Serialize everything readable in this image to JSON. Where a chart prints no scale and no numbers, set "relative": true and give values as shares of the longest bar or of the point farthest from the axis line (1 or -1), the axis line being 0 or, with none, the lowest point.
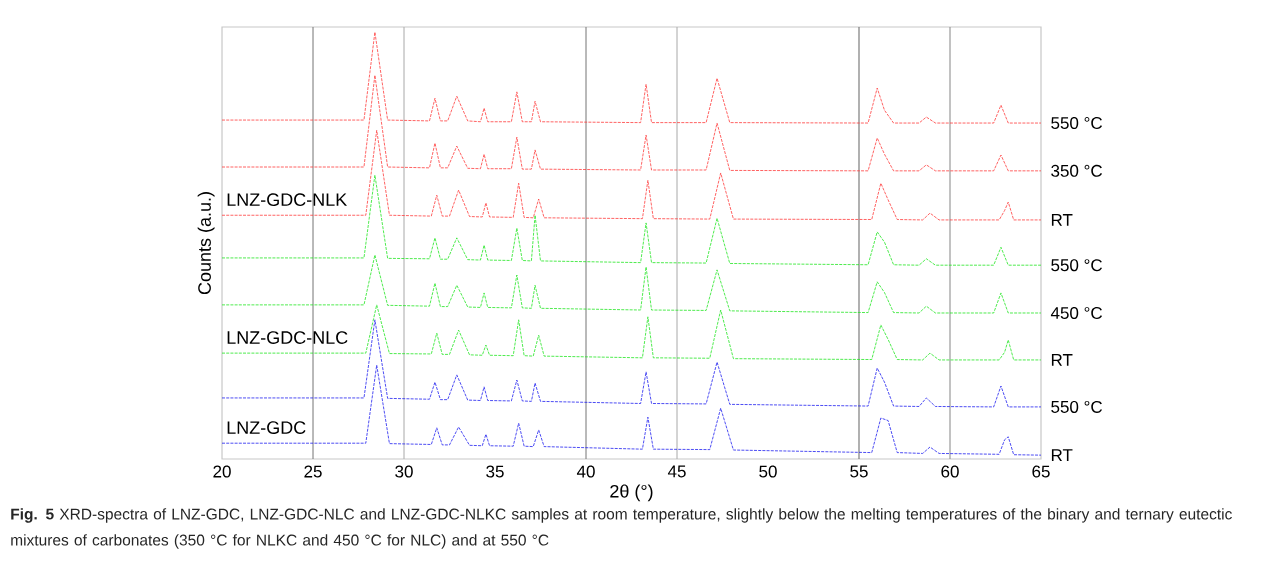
{
  "chart_data": {
    "type": "line",
    "relative": true,
    "xlabel": "2θ (°)",
    "ylabel": "Counts (a.u.)",
    "xlim": [
      20,
      65
    ],
    "xticks": [
      20,
      25,
      30,
      35,
      40,
      45,
      50,
      55,
      60,
      65
    ],
    "line_style": "dashed",
    "ref_lines": [
      {
        "axis": "x",
        "value": 25,
        "color": "#808080"
      },
      {
        "axis": "x",
        "value": 30,
        "color": "#b0b0b0"
      },
      {
        "axis": "x",
        "value": 40,
        "color": "#808080"
      },
      {
        "axis": "x",
        "value": 45,
        "color": "#b0b0b0"
      },
      {
        "axis": "x",
        "value": 55,
        "color": "#707070"
      },
      {
        "axis": "x",
        "value": 60,
        "color": "#909090"
      }
    ],
    "series": [
      {
        "name": "550 °C",
        "color": "#ff3b3b",
        "x": [
          20,
          27.8,
          28.4,
          29.1,
          31.4,
          31.7,
          32.0,
          32.4,
          32.9,
          33.5,
          34.2,
          34.4,
          34.6,
          35.9,
          36.2,
          36.5,
          37.0,
          37.2,
          37.5,
          43.0,
          43.3,
          43.6,
          46.6,
          47.2,
          47.9,
          55.5,
          56.0,
          56.4,
          56.9,
          58.3,
          58.7,
          59.2,
          62.4,
          62.8,
          63.2,
          65
        ],
        "values": [
          0.794,
          0.794,
          1.0,
          0.794,
          0.792,
          0.845,
          0.792,
          0.792,
          0.85,
          0.792,
          0.79,
          0.822,
          0.79,
          0.79,
          0.86,
          0.79,
          0.79,
          0.838,
          0.79,
          0.788,
          0.878,
          0.788,
          0.788,
          0.892,
          0.788,
          0.787,
          0.869,
          0.817,
          0.787,
          0.787,
          0.801,
          0.787,
          0.787,
          0.829,
          0.787,
          0.787
        ]
      },
      {
        "name": "350 °C",
        "color": "#ff3b3b",
        "x": [
          20,
          27.8,
          28.4,
          29.1,
          31.4,
          31.7,
          32.0,
          32.4,
          32.9,
          33.5,
          34.2,
          34.4,
          34.6,
          35.9,
          36.2,
          36.5,
          37.0,
          37.2,
          37.5,
          43.0,
          43.3,
          43.6,
          46.6,
          47.2,
          47.9,
          55.5,
          56.0,
          56.4,
          56.9,
          58.3,
          58.7,
          59.2,
          62.4,
          62.8,
          63.2,
          65
        ],
        "values": [
          0.684,
          0.684,
          0.899,
          0.684,
          0.682,
          0.74,
          0.682,
          0.682,
          0.733,
          0.681,
          0.68,
          0.714,
          0.68,
          0.68,
          0.754,
          0.679,
          0.679,
          0.724,
          0.679,
          0.677,
          0.759,
          0.677,
          0.677,
          0.787,
          0.676,
          0.675,
          0.752,
          0.714,
          0.675,
          0.675,
          0.689,
          0.675,
          0.675,
          0.712,
          0.675,
          0.675
        ]
      },
      {
        "name": "RT",
        "color": "#ff3b3b",
        "x": [
          20,
          27.9,
          28.5,
          29.2,
          31.5,
          31.8,
          32.1,
          32.5,
          33.0,
          33.6,
          34.3,
          34.5,
          34.7,
          36.0,
          36.3,
          36.6,
          37.1,
          37.4,
          37.7,
          43.1,
          43.4,
          43.7,
          46.8,
          47.4,
          48.1,
          55.7,
          56.2,
          56.6,
          57.1,
          58.5,
          58.9,
          59.4,
          62.7,
          63.0,
          63.2,
          63.5,
          65
        ],
        "values": [
          0.571,
          0.571,
          0.77,
          0.571,
          0.569,
          0.618,
          0.569,
          0.569,
          0.63,
          0.568,
          0.567,
          0.6,
          0.567,
          0.566,
          0.646,
          0.566,
          0.565,
          0.609,
          0.565,
          0.563,
          0.653,
          0.563,
          0.562,
          0.67,
          0.562,
          0.561,
          0.646,
          0.607,
          0.561,
          0.56,
          0.576,
          0.56,
          0.56,
          0.582,
          0.602,
          0.56,
          0.56
        ]
      },
      {
        "name": "550 °C",
        "color": "#22e622",
        "x": [
          20,
          27.8,
          28.4,
          29.1,
          31.4,
          31.7,
          32.0,
          32.4,
          32.9,
          33.5,
          34.2,
          34.4,
          34.6,
          35.9,
          36.2,
          36.5,
          37.0,
          37.2,
          37.5,
          43.0,
          43.3,
          43.6,
          46.6,
          47.2,
          47.9,
          55.5,
          56.0,
          56.4,
          56.9,
          58.3,
          58.7,
          59.2,
          62.4,
          62.8,
          63.2,
          65
        ],
        "values": [
          0.471,
          0.471,
          0.665,
          0.47,
          0.469,
          0.518,
          0.468,
          0.468,
          0.518,
          0.467,
          0.466,
          0.501,
          0.466,
          0.465,
          0.541,
          0.465,
          0.464,
          0.571,
          0.464,
          0.46,
          0.553,
          0.46,
          0.459,
          0.564,
          0.458,
          0.455,
          0.532,
          0.508,
          0.455,
          0.454,
          0.469,
          0.454,
          0.454,
          0.496,
          0.454,
          0.454
        ]
      },
      {
        "name": "450 °C",
        "color": "#22e622",
        "x": [
          20,
          27.8,
          28.4,
          29.1,
          31.4,
          31.7,
          32.0,
          32.4,
          32.9,
          33.5,
          34.2,
          34.4,
          34.6,
          35.9,
          36.2,
          36.5,
          37.0,
          37.2,
          37.5,
          43.0,
          43.3,
          43.6,
          46.6,
          47.2,
          47.9,
          55.5,
          56.0,
          56.4,
          56.9,
          58.3,
          58.7,
          59.2,
          62.4,
          62.8,
          63.2,
          65
        ],
        "values": [
          0.361,
          0.361,
          0.478,
          0.36,
          0.358,
          0.412,
          0.357,
          0.357,
          0.407,
          0.356,
          0.355,
          0.389,
          0.355,
          0.354,
          0.431,
          0.354,
          0.353,
          0.407,
          0.353,
          0.349,
          0.45,
          0.349,
          0.348,
          0.443,
          0.347,
          0.343,
          0.415,
          0.39,
          0.343,
          0.342,
          0.358,
          0.342,
          0.342,
          0.389,
          0.342,
          0.342
        ]
      },
      {
        "name": "RT",
        "color": "#22e622",
        "x": [
          20,
          27.9,
          28.5,
          29.2,
          31.5,
          31.8,
          32.1,
          32.5,
          33.0,
          33.6,
          34.3,
          34.5,
          34.7,
          36.0,
          36.3,
          36.6,
          37.1,
          37.4,
          37.7,
          43.1,
          43.4,
          43.7,
          46.8,
          47.4,
          48.1,
          55.7,
          56.2,
          56.6,
          57.1,
          58.5,
          58.9,
          59.4,
          62.7,
          63.0,
          63.2,
          63.5,
          65
        ],
        "values": [
          0.248,
          0.248,
          0.361,
          0.247,
          0.246,
          0.295,
          0.245,
          0.245,
          0.302,
          0.244,
          0.243,
          0.267,
          0.243,
          0.242,
          0.326,
          0.242,
          0.241,
          0.29,
          0.241,
          0.237,
          0.333,
          0.237,
          0.236,
          0.349,
          0.235,
          0.233,
          0.314,
          0.28,
          0.233,
          0.232,
          0.248,
          0.232,
          0.232,
          0.25,
          0.279,
          0.232,
          0.232
        ]
      },
      {
        "name": "550 °C",
        "color": "#2020f0",
        "x": [
          20,
          27.8,
          28.4,
          29.1,
          31.4,
          31.7,
          32.0,
          32.4,
          32.9,
          33.5,
          34.2,
          34.4,
          34.6,
          35.9,
          36.2,
          36.5,
          37.0,
          37.2,
          37.5,
          43.0,
          43.3,
          43.6,
          46.6,
          47.2,
          47.9,
          55.5,
          56.0,
          56.4,
          56.9,
          58.3,
          58.7,
          59.2,
          62.4,
          62.8,
          63.2,
          65
        ],
        "values": [
          0.143,
          0.143,
          0.326,
          0.142,
          0.14,
          0.18,
          0.139,
          0.139,
          0.197,
          0.138,
          0.137,
          0.169,
          0.137,
          0.136,
          0.185,
          0.136,
          0.135,
          0.178,
          0.135,
          0.13,
          0.204,
          0.13,
          0.129,
          0.227,
          0.128,
          0.124,
          0.213,
          0.18,
          0.124,
          0.123,
          0.143,
          0.123,
          0.122,
          0.171,
          0.122,
          0.122
        ]
      },
      {
        "name": "RT",
        "color": "#2020f0",
        "x": [
          20,
          27.9,
          28.5,
          29.2,
          31.5,
          31.8,
          32.1,
          32.5,
          33.0,
          33.6,
          34.3,
          34.5,
          34.7,
          36.0,
          36.3,
          36.6,
          37.1,
          37.4,
          37.7,
          43.1,
          43.4,
          43.7,
          46.8,
          47.4,
          48.1,
          55.7,
          56.2,
          56.6,
          57.1,
          58.5,
          58.9,
          59.4,
          62.7,
          63.0,
          63.2,
          63.5,
          65
        ],
        "values": [
          0.037,
          0.037,
          0.22,
          0.036,
          0.034,
          0.073,
          0.033,
          0.033,
          0.075,
          0.032,
          0.031,
          0.058,
          0.031,
          0.03,
          0.084,
          0.03,
          0.029,
          0.068,
          0.029,
          0.023,
          0.098,
          0.023,
          0.022,
          0.119,
          0.021,
          0.015,
          0.096,
          0.09,
          0.015,
          0.013,
          0.028,
          0.013,
          0.011,
          0.045,
          0.052,
          0.01,
          0.009
        ]
      }
    ],
    "annotations": [
      "LNZ-GDC-NLK",
      "LNZ-GDC-NLC",
      "LNZ-GDC",
      "**Fig. 5** XRD-spectra of LNZ-GDC, LNZ-GDC-NLC and LNZ-GDC-NLKC samples at room temperature, slightly below the melting temperatures of the binary and ternary eutectic mixtures of carbonates (350 °C for NLKC and 450 °C for NLC) and at 550 °C"
    ]
  }
}
